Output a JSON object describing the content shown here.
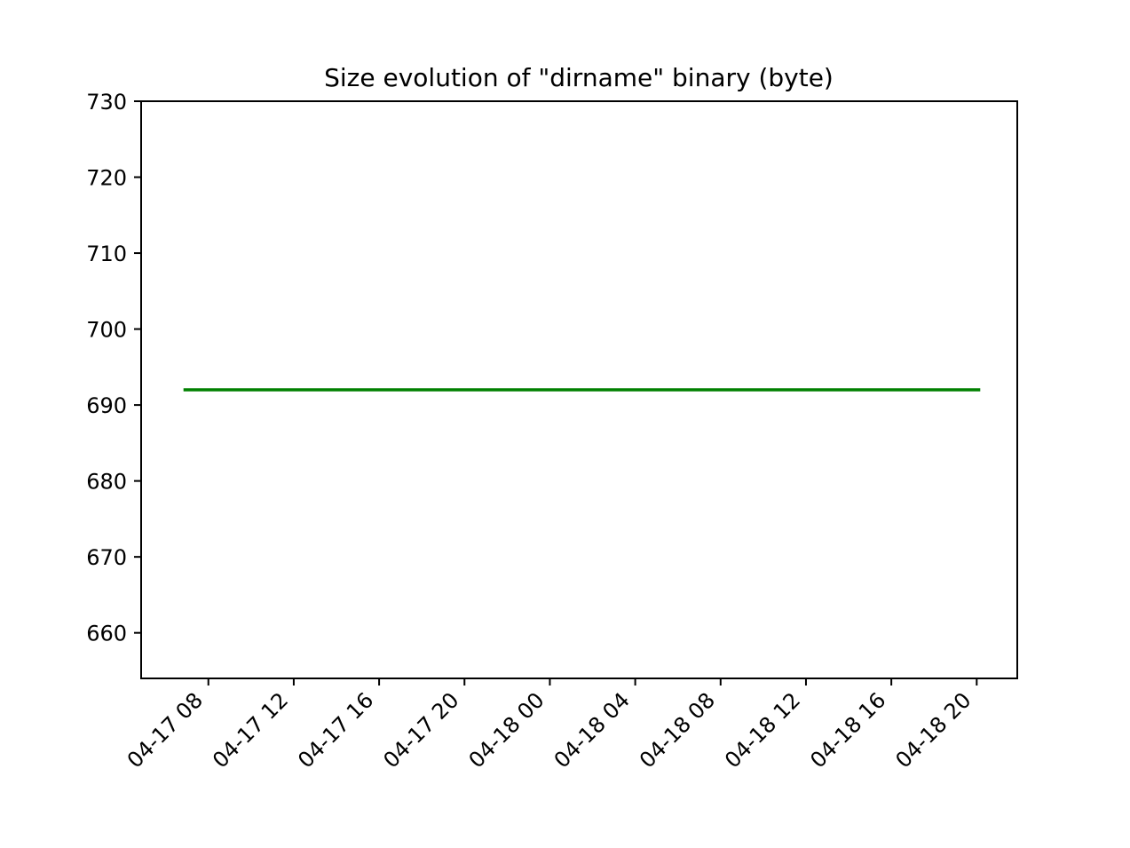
{
  "chart_data": {
    "type": "line",
    "title": "Size evolution of \"dirname\" binary (byte)",
    "xlabel": "",
    "ylabel": "",
    "x_tick_labels": [
      "04-17 08",
      "04-17 12",
      "04-17 16",
      "04-17 20",
      "04-18 00",
      "04-18 04",
      "04-18 08",
      "04-18 12",
      "04-18 16",
      "04-18 20"
    ],
    "y_tick_labels": [
      "660",
      "670",
      "680",
      "690",
      "700",
      "710",
      "720",
      "730"
    ],
    "x_ticks": [
      "04-17 08:00",
      "04-17 12:00",
      "04-17 16:00",
      "04-17 20:00",
      "04-18 00:00",
      "04-18 04:00",
      "04-18 08:00",
      "04-18 12:00",
      "04-18 16:00",
      "04-18 20:00"
    ],
    "y_ticks": [
      660,
      670,
      680,
      690,
      700,
      710,
      720,
      730
    ],
    "xlim": [
      "04-17 04:51",
      "04-18 21:54"
    ],
    "ylim": [
      654,
      730
    ],
    "grid": false,
    "series": [
      {
        "color": "#008000",
        "points": [
          {
            "x": "04-17 06:50",
            "y": 692
          },
          {
            "x": "04-18 20:10",
            "y": 692
          }
        ]
      }
    ]
  }
}
